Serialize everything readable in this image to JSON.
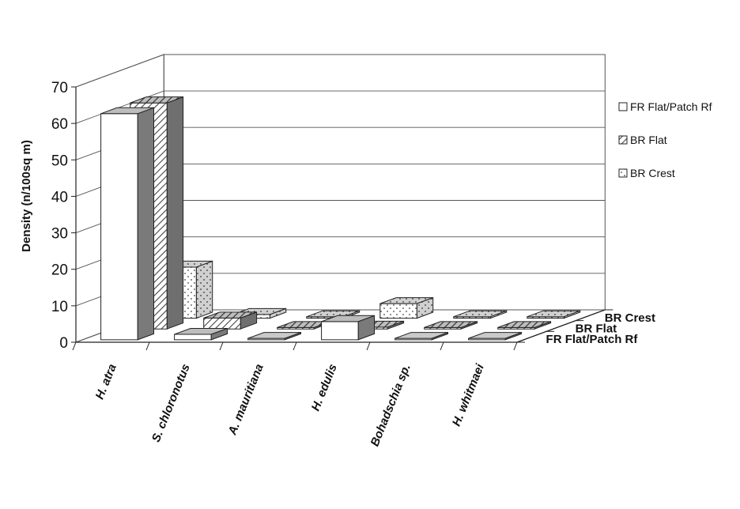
{
  "chart_data": {
    "type": "bar",
    "subtype": "3d-clustered-bar",
    "title": "",
    "ylabel": "Density (n/100sq m)",
    "xlabel": "",
    "ylim": [
      0,
      70
    ],
    "yticks": [
      0,
      10,
      20,
      30,
      40,
      50,
      60,
      70
    ],
    "categories": [
      "H. atra",
      "S. chloronotus",
      "A. mauritiana",
      "H. edulis",
      "Bohadschia sp.",
      "H. whitmaei"
    ],
    "series": [
      {
        "name": "FR Flat/Patch Rf",
        "values": [
          62,
          1.5,
          0,
          5,
          0,
          0
        ]
      },
      {
        "name": "BR Flat",
        "values": [
          62,
          3,
          0,
          0.5,
          0,
          0
        ]
      },
      {
        "name": "BR Crest",
        "values": [
          14,
          1,
          0,
          4,
          0,
          0
        ]
      }
    ],
    "depth_labels": [
      "BR Crest",
      "BR Flat",
      "FR Flat/Patch Rf"
    ],
    "legend": {
      "placement": "right",
      "entries": [
        "FR Flat/Patch Rf",
        "BR Flat",
        "BR Crest"
      ]
    },
    "grid": true
  }
}
